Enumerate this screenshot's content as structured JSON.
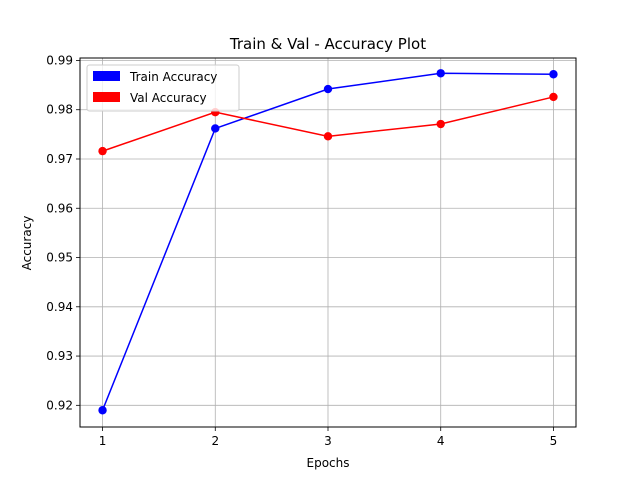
{
  "chart_data": {
    "type": "line",
    "title": "Train & Val - Accuracy Plot",
    "xlabel": "Epochs",
    "ylabel": "Accuracy",
    "x": [
      1,
      2,
      3,
      4,
      5
    ],
    "xlim": [
      0.8,
      5.2
    ],
    "ylim": [
      0.9156,
      0.9905
    ],
    "x_ticks": [
      "1",
      "2",
      "3",
      "4",
      "5"
    ],
    "y_ticks": [
      0.92,
      0.93,
      0.94,
      0.95,
      0.96,
      0.97,
      0.98,
      0.99
    ],
    "y_tick_labels": [
      "0.92",
      "0.93",
      "0.94",
      "0.95",
      "0.96",
      "0.97",
      "0.98",
      "0.99"
    ],
    "grid": true,
    "legend_position": "top-left",
    "series": [
      {
        "name": "Train Accuracy",
        "color": "#0000ff",
        "values": [
          0.919,
          0.9762,
          0.9842,
          0.9874,
          0.9872
        ]
      },
      {
        "name": "Val Accuracy",
        "color": "#ff0000",
        "values": [
          0.9716,
          0.9795,
          0.9746,
          0.9771,
          0.9826
        ]
      }
    ]
  }
}
